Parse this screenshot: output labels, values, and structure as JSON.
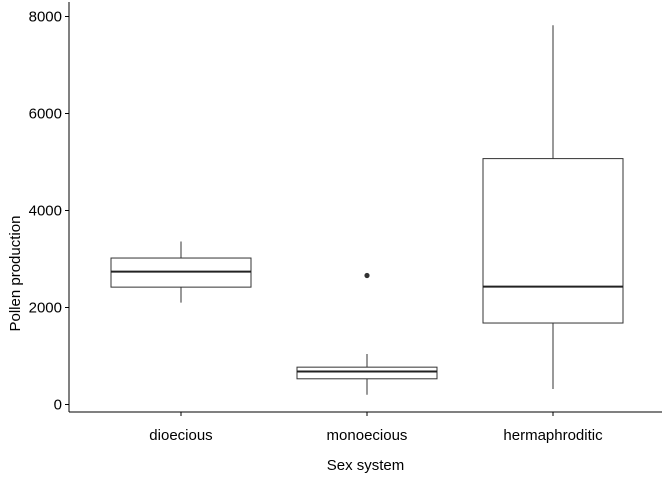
{
  "chart_data": {
    "type": "boxplot",
    "title": "",
    "xlabel": "Sex system",
    "ylabel": "Pollen production",
    "ylim": [
      -250,
      8200
    ],
    "yticks": [
      0,
      2000,
      4000,
      6000,
      8000
    ],
    "grid": false,
    "categories": [
      "dioecious",
      "monoecious",
      "hermaphroditic"
    ],
    "boxes": [
      {
        "category": "dioecious",
        "whisker_low": 2100,
        "q1": 2420,
        "median": 2740,
        "q3": 3020,
        "whisker_high": 3360,
        "outliers": []
      },
      {
        "category": "monoecious",
        "whisker_low": 200,
        "q1": 530,
        "median": 680,
        "q3": 770,
        "whisker_high": 1040,
        "outliers": [
          2660
        ]
      },
      {
        "category": "hermaphroditic",
        "whisker_low": 320,
        "q1": 1680,
        "median": 2430,
        "q3": 5070,
        "whisker_high": 7820,
        "outliers": []
      }
    ]
  }
}
